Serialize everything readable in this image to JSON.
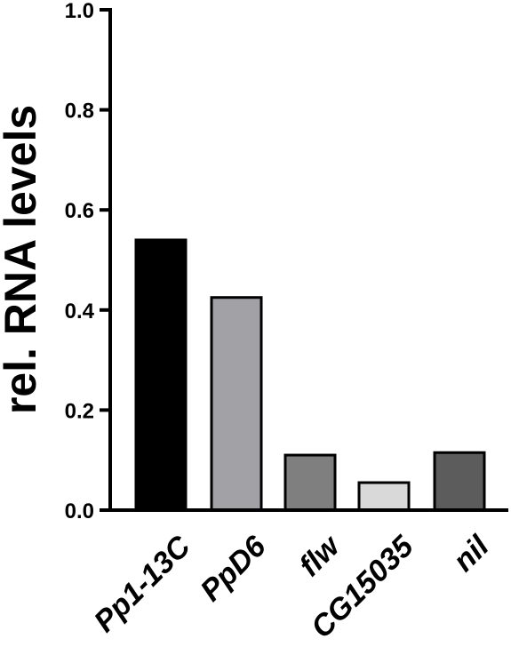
{
  "chart_data": {
    "type": "bar",
    "categories": [
      "Pp1-13C",
      "PpD6",
      "flw",
      "CG15035",
      "nil"
    ],
    "values": [
      0.54,
      0.425,
      0.11,
      0.055,
      0.115
    ],
    "colors": [
      "#000000",
      "#a2a2a6",
      "#7f7f7f",
      "#d9d9d9",
      "#5c5c5c"
    ],
    "ylabel": "rel. RNA levels",
    "xlabel": "",
    "ylim": [
      0,
      1.0
    ],
    "yticks": [
      "0.0",
      "0.2",
      "0.4",
      "0.6",
      "0.8",
      "1.0"
    ],
    "grid": false,
    "legend": "none"
  }
}
